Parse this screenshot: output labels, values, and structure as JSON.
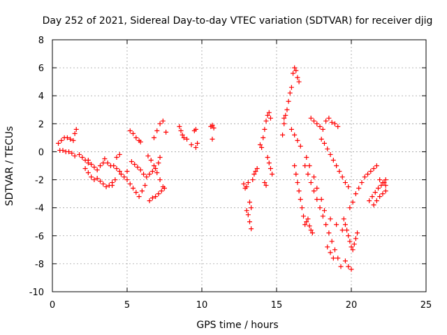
{
  "chart_data": {
    "type": "scatter",
    "title": "Day 252 of 2021, Sidereal Day-to-day VTEC variation (SDTVAR) for receiver djig",
    "xlabel": "GPS time / hours",
    "ylabel": "SDTVAR / TECUs",
    "xlim": [
      0,
      25
    ],
    "ylim": [
      -10,
      8
    ],
    "xticks": [
      0,
      5,
      10,
      15,
      20,
      25
    ],
    "yticks": [
      -10,
      -8,
      -6,
      -4,
      -2,
      0,
      2,
      4,
      6,
      8
    ],
    "grid": true,
    "marker": "+",
    "color": "#ff0000",
    "x": [
      0.4,
      0.6,
      0.8,
      1.0,
      1.2,
      1.4,
      0.5,
      0.7,
      0.9,
      1.1,
      1.3,
      1.5,
      1.6,
      1.5,
      1.8,
      2.0,
      2.2,
      2.4,
      2.2,
      2.4,
      2.6,
      2.8,
      3.0,
      2.4,
      2.6,
      2.8,
      3.0,
      3.2,
      3.4,
      3.2,
      3.4,
      3.6,
      3.8,
      4.0,
      3.5,
      3.7,
      3.9,
      4.1,
      4.3,
      4.5,
      4.3,
      4.5,
      4.0,
      4.2,
      4.6,
      4.8,
      5.0,
      5.2,
      5.4,
      5.6,
      5.8,
      5.9,
      5.0,
      5.2,
      5.4,
      5.6,
      5.8,
      6.0,
      6.2,
      5.3,
      5.5,
      5.7,
      5.9,
      6.1,
      6.3,
      6.5,
      6.7,
      6.9,
      7.1,
      7.2,
      6.4,
      6.6,
      6.8,
      7.0,
      7.2,
      7.4,
      6.5,
      6.7,
      6.9,
      7.1,
      7.3,
      7.5,
      6.8,
      7.0,
      7.2,
      7.4,
      7.6,
      8.5,
      8.6,
      8.7,
      8.8,
      9.0,
      9.3,
      9.6,
      9.7,
      9.6,
      9.5,
      10.6,
      10.7,
      10.8,
      10.7,
      12.8,
      12.9,
      13.0,
      13.1,
      13.2,
      13.3,
      13.0,
      13.1,
      13.2,
      13.3,
      13.4,
      13.5,
      13.6,
      13.7,
      13.9,
      14.0,
      14.1,
      14.2,
      14.3,
      14.4,
      14.5,
      14.6,
      14.4,
      14.5,
      14.6,
      14.7,
      14.2,
      14.3,
      15.4,
      15.5,
      15.6,
      15.7,
      15.8,
      15.9,
      16.0,
      16.1,
      16.2,
      16.3,
      16.4,
      16.5,
      15.5,
      16.2,
      16.3,
      16.4,
      16.5,
      16.6,
      16.7,
      16.8,
      16.9,
      17.0,
      17.1,
      17.2,
      17.3,
      17.4,
      17.3,
      17.5,
      17.7,
      17.9,
      18.1,
      18.3,
      18.5,
      18.7,
      18.9,
      19.1,
      18.4,
      18.6,
      18.8,
      18.0,
      18.2,
      18.4,
      18.6,
      18.8,
      19.0,
      19.2,
      19.4,
      19.6,
      19.8,
      19.5,
      19.6,
      19.7,
      19.8,
      19.9,
      20.0,
      20.1,
      20.2,
      20.3,
      20.4,
      19.6,
      19.8,
      20.0,
      19.9,
      20.1,
      20.3,
      20.5,
      20.7,
      20.9,
      21.1,
      21.3,
      21.5,
      21.7,
      21.9,
      22.1,
      22.3,
      21.2,
      21.4,
      21.6,
      21.8,
      22.0,
      22.2,
      22.3,
      21.5,
      21.7,
      21.9,
      22.1,
      22.3,
      16.0,
      16.2,
      16.4,
      16.6,
      17.0,
      17.2,
      17.5,
      17.7,
      18.0,
      18.2,
      18.6,
      19.0,
      19.4,
      16.9,
      17.1,
      17.3,
      17.5,
      17.7,
      17.9,
      18.1,
      18.3,
      18.5,
      18.7,
      18.9,
      19.1,
      19.3
    ],
    "y": [
      0.6,
      0.8,
      1.0,
      1.0,
      0.9,
      0.8,
      0.1,
      0.1,
      0.0,
      0.0,
      -0.1,
      -0.3,
      1.6,
      1.3,
      -0.2,
      -0.4,
      -0.6,
      -0.8,
      -1.2,
      -1.5,
      -1.8,
      -2.0,
      -1.9,
      -0.6,
      -0.9,
      -1.1,
      -1.3,
      -1.0,
      -0.8,
      -2.1,
      -2.3,
      -2.5,
      -2.4,
      -2.4,
      -0.5,
      -0.8,
      -1.0,
      -1.0,
      -1.2,
      -1.4,
      -0.4,
      -0.2,
      -2.2,
      -2.0,
      -1.6,
      -1.8,
      -1.4,
      1.5,
      1.3,
      1.0,
      0.8,
      0.7,
      -2.0,
      -2.3,
      -2.6,
      -2.9,
      -3.2,
      -2.8,
      -2.4,
      -0.7,
      -0.9,
      -1.1,
      -1.3,
      -1.6,
      -1.8,
      -1.6,
      -1.4,
      -1.2,
      -0.8,
      -0.4,
      -0.3,
      -0.6,
      -1.0,
      -1.5,
      -2.0,
      -2.5,
      -3.5,
      -3.3,
      -3.2,
      -3.0,
      -2.8,
      -2.6,
      1.0,
      1.5,
      2.0,
      2.2,
      1.4,
      1.8,
      1.5,
      1.2,
      1.0,
      0.9,
      0.5,
      0.3,
      0.6,
      1.6,
      1.5,
      1.8,
      1.9,
      1.7,
      0.9,
      -2.3,
      -2.6,
      -2.5,
      -2.2,
      -3.6,
      -4.0,
      -4.2,
      -4.5,
      -5.0,
      -5.5,
      -2.0,
      -1.6,
      -1.4,
      -1.2,
      0.5,
      0.3,
      1.0,
      1.6,
      2.2,
      2.6,
      2.8,
      2.4,
      -0.4,
      -0.8,
      -1.2,
      -1.6,
      -2.2,
      -2.4,
      1.2,
      2.0,
      2.6,
      3.0,
      3.6,
      4.2,
      4.6,
      5.6,
      6.0,
      5.8,
      5.3,
      5.0,
      2.4,
      -1.0,
      -1.6,
      -2.2,
      -2.8,
      -3.4,
      -4.0,
      -4.6,
      -5.2,
      -5.0,
      -4.8,
      -5.3,
      -5.6,
      -5.8,
      2.4,
      2.2,
      2.0,
      1.8,
      1.6,
      2.2,
      2.4,
      2.1,
      2.0,
      1.8,
      -6.8,
      -7.2,
      -7.6,
      0.9,
      0.6,
      0.2,
      -0.2,
      -0.6,
      -1.0,
      -1.4,
      -1.8,
      -2.2,
      -2.5,
      -4.8,
      -5.2,
      -5.6,
      -6.0,
      -6.4,
      -6.8,
      -7.0,
      -6.6,
      -6.2,
      -5.8,
      -7.8,
      -8.2,
      -8.4,
      -4.0,
      -3.6,
      -3.0,
      -2.6,
      -2.2,
      -1.8,
      -1.6,
      -1.4,
      -1.2,
      -1.0,
      -2.0,
      -2.2,
      -2.4,
      -3.5,
      -3.2,
      -2.9,
      -2.6,
      -2.4,
      -2.2,
      -2.0,
      -3.8,
      -3.5,
      -3.2,
      -3.0,
      -2.8,
      1.6,
      1.2,
      0.8,
      0.4,
      -0.4,
      -1.0,
      -1.8,
      -2.6,
      -3.4,
      -4.2,
      -4.8,
      -5.2,
      -5.6,
      -1.0,
      -1.6,
      -2.2,
      -2.8,
      -3.4,
      -4.0,
      -4.6,
      -5.2,
      -5.8,
      -6.4,
      -7.0,
      -7.6,
      -8.2
    ]
  }
}
